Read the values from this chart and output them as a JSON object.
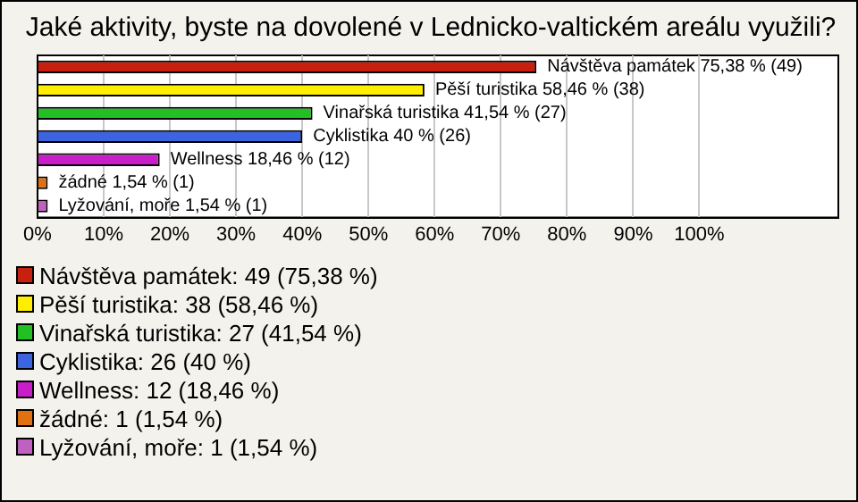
{
  "chart_data": {
    "type": "bar",
    "orientation": "horizontal",
    "title": "Jaké aktivity, byste na dovolené v Lednicko-valtickém areálu využili?",
    "categories": [
      "Návštěva památek",
      "Pěší turistika",
      "Vinařská turistika",
      "Cyklistika",
      "Wellness",
      "žádné",
      "Lyžování, moře"
    ],
    "values": [
      75.38,
      58.46,
      41.54,
      40,
      18.46,
      1.54,
      1.54
    ],
    "colors": [
      "#c8200e",
      "#ffee00",
      "#22c022",
      "#3c64e0",
      "#c81ec8",
      "#e07010",
      "#c060c0"
    ],
    "value_labels": [
      "75,38 % (49)",
      "58,46 % (38)",
      "41,54 % (27)",
      "40 % (26)",
      "18,46 % (12)",
      "1,54 % (1)",
      "1,54 % (1)"
    ],
    "xlim": [
      0,
      121
    ],
    "xticks": [
      {
        "value": 0,
        "label": "0%"
      },
      {
        "value": 10,
        "label": "10%"
      },
      {
        "value": 20,
        "label": "20%"
      },
      {
        "value": 30,
        "label": "30%"
      },
      {
        "value": 40,
        "label": "40%"
      },
      {
        "value": 50,
        "label": "50%"
      },
      {
        "value": 60,
        "label": "60%"
      },
      {
        "value": 70,
        "label": "70%"
      },
      {
        "value": 80,
        "label": "80%"
      },
      {
        "value": 90,
        "label": "90%"
      },
      {
        "value": 100,
        "label": "100%"
      }
    ],
    "grid": "x",
    "tick_labels": "x",
    "annotations": [
      "Návštěva památek: 49 (75,38 %)",
      "Pěší turistika: 38 (58,46 %)",
      "Vinařská turistika: 27 (41,54 %)",
      "Cyklistika: 26 (40 %)",
      "Wellness: 12 (18,46 %)",
      "žádné: 1 (1,54 %)",
      "Lyžování, moře: 1 (1,54 %)"
    ]
  }
}
